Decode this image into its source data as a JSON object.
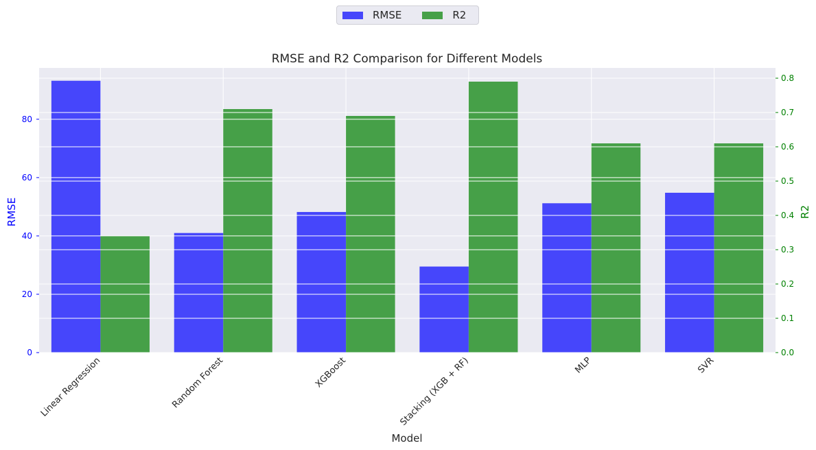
{
  "chart_data": {
    "type": "bar",
    "title": "RMSE and R2 Comparison for Different Models",
    "xlabel": "Model",
    "categories": [
      "Linear Regression",
      "Random Forest",
      "XGBoost",
      "Stacking (XGB + RF)",
      "MLP",
      "SVR"
    ],
    "series": [
      {
        "name": "RMSE",
        "axis": "left",
        "color": "#0000ff",
        "values": [
          93.2,
          41.0,
          48.2,
          29.5,
          51.2,
          54.8
        ]
      },
      {
        "name": "R2",
        "axis": "right",
        "color": "#008000",
        "values": [
          0.34,
          0.71,
          0.69,
          0.79,
          0.61,
          0.61
        ]
      }
    ],
    "y_left": {
      "label": "RMSE",
      "color": "#0000ff",
      "lim": [
        0,
        97.6
      ],
      "ticks": [
        0,
        20,
        40,
        60,
        80
      ]
    },
    "y_right": {
      "label": "R2",
      "color": "#008000",
      "lim": [
        0,
        0.83
      ],
      "ticks": [
        "0.0",
        "0.1",
        "0.2",
        "0.3",
        "0.4",
        "0.5",
        "0.6",
        "0.7",
        "0.8"
      ]
    },
    "legend_position": "top-center",
    "grid": true,
    "background": "#eaeaf2"
  }
}
